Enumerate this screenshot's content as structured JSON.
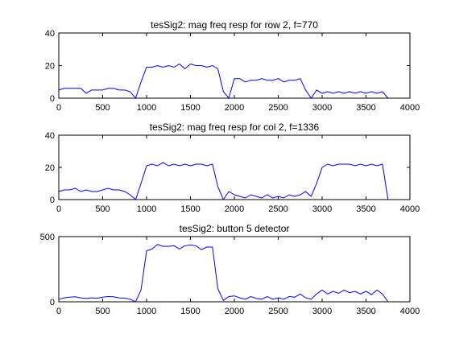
{
  "colors": {
    "line": "#0000ff",
    "axes": "#000000",
    "background": "#ffffff"
  },
  "chart_data": [
    {
      "type": "line",
      "title": "tesSig2: mag freq resp for row 2, f=770",
      "xlim": [
        0,
        4000
      ],
      "ylim": [
        0,
        40
      ],
      "xticks": [
        0,
        500,
        1000,
        1500,
        2000,
        2500,
        3000,
        3500,
        4000
      ],
      "yticks": [
        0,
        20,
        40
      ],
      "grid": false,
      "series": [
        {
          "x": [
            0,
            62,
            125,
            187,
            250,
            312,
            375,
            437,
            500,
            562,
            625,
            687,
            750,
            812,
            875,
            937,
            1000,
            1062,
            1125,
            1187,
            1250,
            1312,
            1375,
            1437,
            1500,
            1562,
            1625,
            1687,
            1750,
            1812,
            1875,
            1937,
            2000,
            2062,
            2125,
            2187,
            2250,
            2312,
            2375,
            2437,
            2500,
            2562,
            2625,
            2687,
            2750,
            2812,
            2875,
            2937,
            3000,
            3062,
            3125,
            3187,
            3250,
            3312,
            3375,
            3437,
            3500,
            3562,
            3625,
            3687,
            3750
          ],
          "y": [
            5,
            6,
            6,
            6,
            6,
            3,
            5,
            5,
            5,
            6,
            6,
            5,
            5,
            4,
            0,
            10,
            19,
            19,
            20,
            19,
            20,
            19,
            21,
            18,
            21,
            20,
            20,
            19,
            20,
            18,
            4,
            0,
            12,
            12,
            10,
            11,
            11,
            12,
            11,
            11,
            12,
            10,
            11,
            11,
            12,
            5,
            0,
            5,
            3,
            4,
            3,
            4,
            3,
            4,
            3,
            4,
            3,
            4,
            3,
            4,
            0
          ]
        }
      ]
    },
    {
      "type": "line",
      "title": "tesSig2: mag freq resp for col 2, f=1336",
      "xlim": [
        0,
        4000
      ],
      "ylim": [
        0,
        40
      ],
      "xticks": [
        0,
        500,
        1000,
        1500,
        2000,
        2500,
        3000,
        3500,
        4000
      ],
      "yticks": [
        0,
        20,
        40
      ],
      "grid": false,
      "series": [
        {
          "x": [
            0,
            62,
            125,
            187,
            250,
            312,
            375,
            437,
            500,
            562,
            625,
            687,
            750,
            812,
            875,
            937,
            1000,
            1062,
            1125,
            1187,
            1250,
            1312,
            1375,
            1437,
            1500,
            1562,
            1625,
            1687,
            1750,
            1812,
            1875,
            1937,
            2000,
            2062,
            2125,
            2187,
            2250,
            2312,
            2375,
            2437,
            2500,
            2562,
            2625,
            2687,
            2750,
            2812,
            2875,
            2937,
            3000,
            3062,
            3125,
            3187,
            3250,
            3312,
            3375,
            3437,
            3500,
            3562,
            3625,
            3687,
            3750
          ],
          "y": [
            5,
            6,
            6,
            7,
            5,
            6,
            5,
            5,
            6,
            7,
            6,
            6,
            5,
            3,
            0,
            10,
            21,
            22,
            21,
            23,
            21,
            22,
            21,
            22,
            21,
            22,
            22,
            21,
            22,
            8,
            0,
            5,
            3,
            2,
            1,
            3,
            2,
            1,
            3,
            1,
            2,
            1,
            3,
            2,
            3,
            5,
            2,
            10,
            20,
            22,
            21,
            22,
            22,
            22,
            21,
            22,
            21,
            22,
            21,
            22,
            0
          ]
        }
      ]
    },
    {
      "type": "line",
      "title": "tesSig2: button 5 detector",
      "xlim": [
        0,
        4000
      ],
      "ylim": [
        0,
        500
      ],
      "xticks": [
        0,
        500,
        1000,
        1500,
        2000,
        2500,
        3000,
        3500,
        4000
      ],
      "yticks": [
        0,
        500
      ],
      "grid": false,
      "series": [
        {
          "x": [
            0,
            62,
            125,
            187,
            250,
            312,
            375,
            437,
            500,
            562,
            625,
            687,
            750,
            812,
            875,
            937,
            1000,
            1062,
            1125,
            1187,
            1250,
            1312,
            1375,
            1437,
            1500,
            1562,
            1625,
            1687,
            1750,
            1812,
            1875,
            1937,
            2000,
            2062,
            2125,
            2187,
            2250,
            2312,
            2375,
            2437,
            2500,
            2562,
            2625,
            2687,
            2750,
            2812,
            2875,
            2937,
            3000,
            3062,
            3125,
            3187,
            3250,
            3312,
            3375,
            3437,
            3500,
            3562,
            3625,
            3687,
            3750
          ],
          "y": [
            20,
            30,
            35,
            38,
            30,
            25,
            30,
            28,
            35,
            40,
            38,
            30,
            28,
            20,
            0,
            90,
            390,
            405,
            440,
            425,
            425,
            430,
            405,
            430,
            435,
            430,
            400,
            420,
            420,
            100,
            10,
            40,
            45,
            30,
            20,
            40,
            25,
            20,
            40,
            20,
            30,
            20,
            40,
            35,
            60,
            30,
            20,
            60,
            90,
            60,
            80,
            65,
            90,
            70,
            80,
            60,
            80,
            55,
            90,
            60,
            0
          ]
        }
      ]
    }
  ]
}
